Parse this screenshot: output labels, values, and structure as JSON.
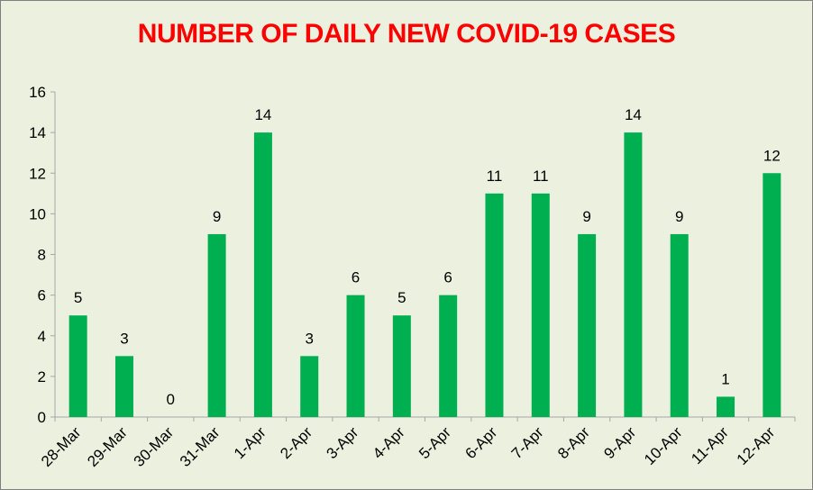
{
  "chart_data": {
    "type": "bar",
    "title": "NUMBER OF DAILY NEW COVID-19 CASES",
    "categories": [
      "28-Mar",
      "29-Mar",
      "30-Mar",
      "31-Mar",
      "1-Apr",
      "2-Apr",
      "3-Apr",
      "4-Apr",
      "5-Apr",
      "6-Apr",
      "7-Apr",
      "8-Apr",
      "9-Apr",
      "10-Apr",
      "11-Apr",
      "12-Apr"
    ],
    "values": [
      5,
      3,
      0,
      9,
      14,
      3,
      6,
      5,
      6,
      11,
      11,
      9,
      14,
      9,
      1,
      12
    ],
    "ylim": [
      0,
      16
    ],
    "yticks": [
      0,
      2,
      4,
      6,
      8,
      10,
      12,
      14,
      16
    ],
    "grid": false,
    "legend": "none",
    "data_labels": true,
    "colors": {
      "bar": "#00b050",
      "title": "#ff0000",
      "background": "#ebf1de",
      "axis": "#a6a6a6"
    }
  }
}
